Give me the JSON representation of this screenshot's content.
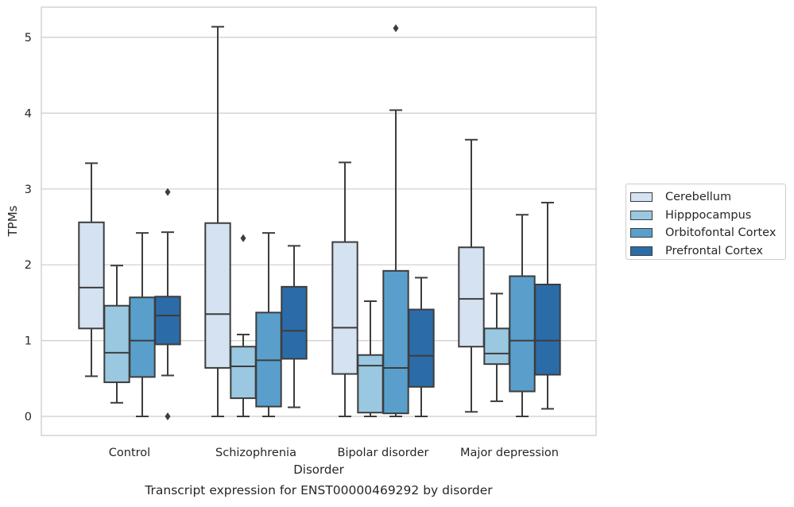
{
  "chart_data": {
    "type": "boxplot",
    "title": "Transcript expression for ENST00000469292 by disorder",
    "xlabel": "Disorder",
    "ylabel": "TPMs",
    "ylim": [
      -0.25,
      5.4
    ],
    "yticks": [
      0,
      1,
      2,
      3,
      4,
      5
    ],
    "grid": true,
    "legend_position": "right",
    "categories": [
      "Control",
      "Schizophrenia",
      "Bipolar disorder",
      "Major depression"
    ],
    "series": [
      {
        "name": "Cerebellum",
        "color": "#d4e2f1",
        "boxes": [
          {
            "whislo": 0.53,
            "q1": 1.16,
            "med": 1.7,
            "q3": 2.56,
            "whishi": 3.34,
            "fliers": []
          },
          {
            "whislo": 0.0,
            "q1": 0.64,
            "med": 1.35,
            "q3": 2.55,
            "whishi": 5.14,
            "fliers": []
          },
          {
            "whislo": 0.0,
            "q1": 0.56,
            "med": 1.17,
            "q3": 2.3,
            "whishi": 3.35,
            "fliers": []
          },
          {
            "whislo": 0.06,
            "q1": 0.92,
            "med": 1.55,
            "q3": 2.23,
            "whishi": 3.65,
            "fliers": []
          }
        ]
      },
      {
        "name": "Hipppocampus",
        "color": "#9ac8e0",
        "boxes": [
          {
            "whislo": 0.18,
            "q1": 0.45,
            "med": 0.84,
            "q3": 1.46,
            "whishi": 1.99,
            "fliers": []
          },
          {
            "whislo": 0.0,
            "q1": 0.24,
            "med": 0.66,
            "q3": 0.92,
            "whishi": 1.08,
            "fliers": [
              2.35
            ]
          },
          {
            "whislo": 0.0,
            "q1": 0.05,
            "med": 0.67,
            "q3": 0.81,
            "whishi": 1.52,
            "fliers": []
          },
          {
            "whislo": 0.2,
            "q1": 0.69,
            "med": 0.83,
            "q3": 1.16,
            "whishi": 1.62,
            "fliers": []
          }
        ]
      },
      {
        "name": "Orbitofontal Cortex",
        "color": "#5a9fcc",
        "boxes": [
          {
            "whislo": 0.0,
            "q1": 0.52,
            "med": 1.0,
            "q3": 1.57,
            "whishi": 2.42,
            "fliers": []
          },
          {
            "whislo": 0.0,
            "q1": 0.13,
            "med": 0.74,
            "q3": 1.37,
            "whishi": 2.42,
            "fliers": []
          },
          {
            "whislo": 0.0,
            "q1": 0.04,
            "med": 0.64,
            "q3": 1.92,
            "whishi": 4.04,
            "fliers": [
              5.12
            ]
          },
          {
            "whislo": 0.0,
            "q1": 0.33,
            "med": 1.0,
            "q3": 1.85,
            "whishi": 2.66,
            "fliers": []
          }
        ]
      },
      {
        "name": "Prefrontal Cortex",
        "color": "#2b6ca8",
        "boxes": [
          {
            "whislo": 0.54,
            "q1": 0.95,
            "med": 1.33,
            "q3": 1.58,
            "whishi": 2.43,
            "fliers": [
              2.96,
              0.0
            ]
          },
          {
            "whislo": 0.12,
            "q1": 0.76,
            "med": 1.13,
            "q3": 1.71,
            "whishi": 2.25,
            "fliers": []
          },
          {
            "whislo": 0.0,
            "q1": 0.39,
            "med": 0.8,
            "q3": 1.41,
            "whishi": 1.83,
            "fliers": []
          },
          {
            "whislo": 0.1,
            "q1": 0.55,
            "med": 1.0,
            "q3": 1.74,
            "whishi": 2.82,
            "fliers": []
          }
        ]
      }
    ]
  }
}
